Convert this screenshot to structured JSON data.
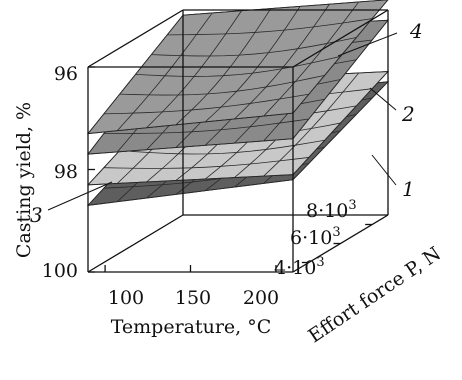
{
  "chart_data": {
    "type": "surface3d",
    "xlabel": "Temperature, °C",
    "ylabel": "Casting yield, %",
    "zlabel": "Effort force P, N",
    "x_ticks": [
      "100",
      "150",
      "200"
    ],
    "y_ticks": [
      "96",
      "98",
      "100"
    ],
    "z_ticks_base": [
      "4",
      "6",
      "8"
    ],
    "z_ticks_mult": "·10",
    "z_ticks_exp": "3",
    "xlim": [
      90,
      210
    ],
    "ylim": [
      96,
      100
    ],
    "y_inverted": true,
    "zlim": [
      3000,
      9000
    ],
    "grid": false,
    "surfaces": [
      {
        "name": "1",
        "color": "#c8c8c8",
        "corners": {
          "x_min_z_min": 98.3,
          "x_max_z_min": 98.1,
          "x_min_z_max": 97.4,
          "x_max_z_max": 97.2
        }
      },
      {
        "name": "2",
        "color": "#8a8a8a",
        "corners": {
          "x_min_z_min": 97.7,
          "x_max_z_min": 97.4,
          "x_min_z_max": 96.4,
          "x_max_z_max": 96.2
        }
      },
      {
        "name": "3",
        "color": "#5e5e5e",
        "corners": {
          "x_min_z_min": 98.7,
          "x_max_z_min": 98.2,
          "x_min_z_max": 97.8,
          "x_max_z_max": 97.4
        }
      },
      {
        "name": "4",
        "color": "#9a9a9a",
        "corners": {
          "x_min_z_min": 97.3,
          "x_max_z_min": 96.9,
          "x_min_z_max": 96.1,
          "x_max_z_max": 95.8
        }
      }
    ]
  }
}
